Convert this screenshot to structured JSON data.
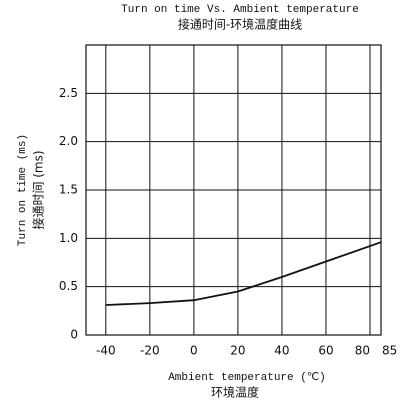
{
  "chart_data": {
    "type": "line",
    "title": "Turn on time Vs. Ambient temperature",
    "subtitle": "接通时间-环境温度曲线",
    "y_label": "Turn on time (ms)",
    "y_label_2": "接通时间 (ms)",
    "x_label": "Ambient temperature (℃)",
    "x_label_2": "环境温度",
    "x": [
      -40,
      -20,
      0,
      20,
      40,
      60,
      85
    ],
    "values": [
      0.31,
      0.33,
      0.36,
      0.45,
      0.6,
      0.76,
      0.96
    ],
    "color": "#111111",
    "xlim": [
      -49,
      85
    ],
    "xticks": [
      -40,
      -20,
      0,
      20,
      40,
      60,
      80,
      85
    ],
    "ylim": [
      0,
      3
    ],
    "yticks": [
      0,
      0.5,
      {
        "value": 1,
        "label": "1.0"
      },
      1.5,
      {
        "value": 2,
        "label": "2.0"
      },
      2.5
    ],
    "grid": true
  }
}
